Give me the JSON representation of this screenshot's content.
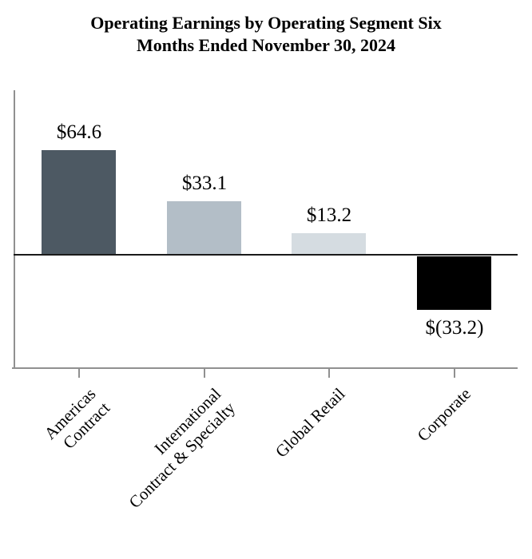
{
  "title": "Operating Earnings by Operating Segment Six\nMonths Ended November 30, 2024",
  "chart_data": {
    "type": "bar",
    "title": "Operating Earnings by Operating Segment Six Months Ended November 30, 2024",
    "categories": [
      "Americas\nContract",
      "International\nContract & Specialty",
      "Global Retail",
      "Corporate"
    ],
    "values": [
      64.6,
      33.1,
      13.2,
      -33.2
    ],
    "value_labels": [
      "$64.6",
      "$33.1",
      "$13.2",
      "$(33.2)"
    ],
    "bar_colors": [
      "#4D5963",
      "#B3BEC7",
      "#D5DCE1",
      "#000000"
    ],
    "axis_color": "#909090",
    "zero_line_color": "#1A1A1A",
    "xlabel": "",
    "ylabel": "",
    "ylim": [
      -70,
      101
    ],
    "grid": false,
    "legend": false,
    "y_tick_labels_shown": false
  }
}
